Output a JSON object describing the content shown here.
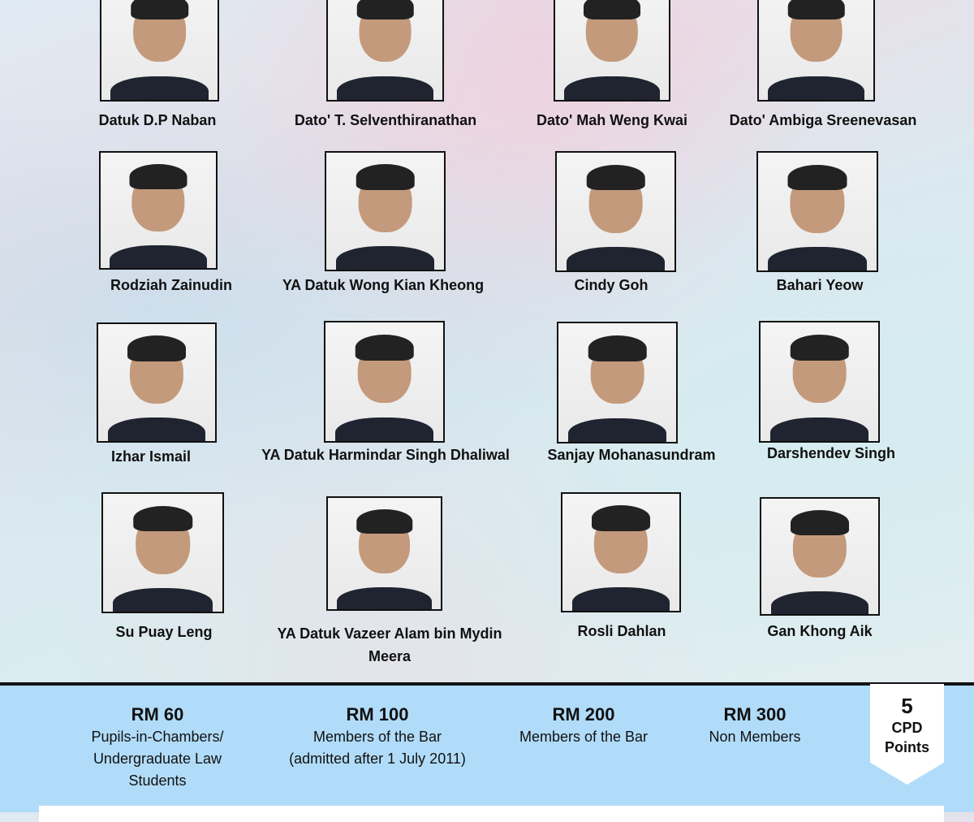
{
  "speakers": [
    {
      "name": "Datuk D.P Naban"
    },
    {
      "name": "Dato' T. Selventhiranathan"
    },
    {
      "name": "Dato' Mah Weng Kwai"
    },
    {
      "name": "Dato' Ambiga Sreenevasan"
    },
    {
      "name": "Rodziah Zainudin"
    },
    {
      "name": "YA Datuk Wong Kian Kheong"
    },
    {
      "name": "Cindy Goh"
    },
    {
      "name": "Bahari Yeow"
    },
    {
      "name": "Izhar Ismail"
    },
    {
      "name": "YA Datuk Harmindar Singh Dhaliwal"
    },
    {
      "name": "Sanjay Mohanasundram"
    },
    {
      "name": "Darshendev Singh"
    },
    {
      "name": "Su Puay Leng"
    },
    {
      "name": "YA Datuk Vazeer Alam bin Mydin Meera"
    },
    {
      "name": "Rosli Dahlan"
    },
    {
      "name": "Gan Khong Aik"
    }
  ],
  "fees": [
    {
      "amount": "RM 60",
      "lines": [
        "Pupils-in-Chambers/",
        "Undergraduate Law",
        "Students"
      ]
    },
    {
      "amount": "RM 100",
      "lines": [
        "Members of the Bar",
        "(admitted after 1 July 2011)"
      ]
    },
    {
      "amount": "RM 200",
      "lines": [
        "Members of the Bar"
      ]
    },
    {
      "amount": "RM 300",
      "lines": [
        "Non Members"
      ]
    }
  ],
  "cpd": {
    "points": "5",
    "label1": "CPD",
    "label2": "Points"
  }
}
